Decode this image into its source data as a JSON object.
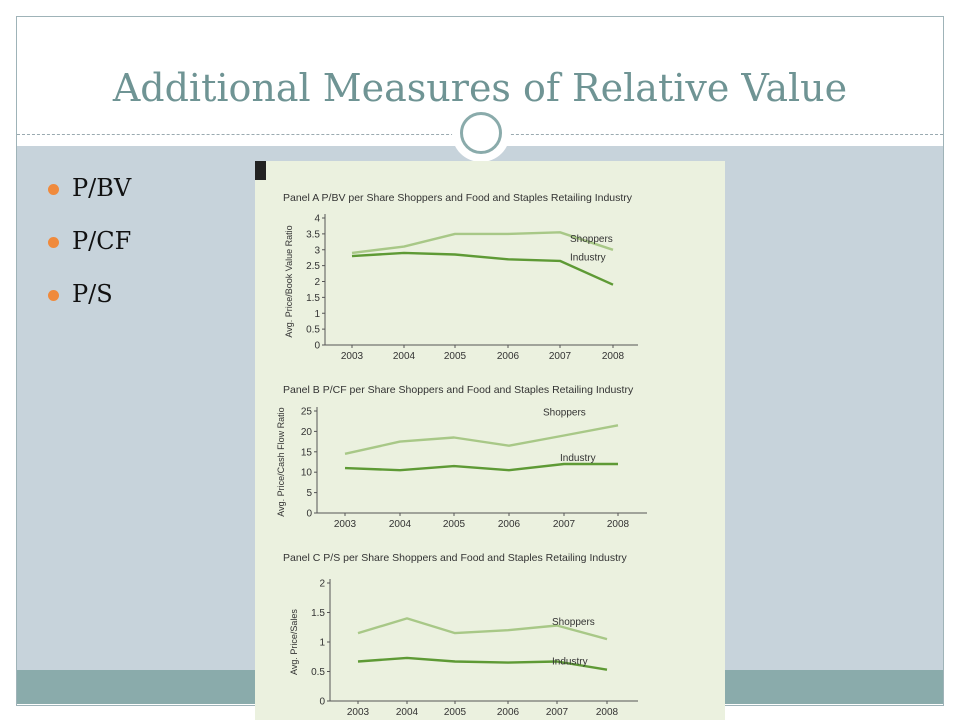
{
  "slide": {
    "title": "Additional Measures of Relative Value",
    "bullets": [
      "P/BV",
      "P/CF",
      "P/S"
    ]
  },
  "colors": {
    "title": "#6f9494",
    "accent_bar": "#8aabab",
    "content_bg": "#c7d3db",
    "bullet": "#f08a3c",
    "shoppers_line": "#a8c887",
    "industry_line": "#5e9a35",
    "figure_bg": "#ebf1df"
  },
  "chart_data": [
    {
      "type": "line",
      "title": "Panel A P/BV per Share Shoppers and Food and Staples Retailing Industry",
      "ylabel": "Avg. Price/Book Value Ratio",
      "x": [
        "2003",
        "2004",
        "2005",
        "2006",
        "2007",
        "2008"
      ],
      "yticks": [
        "0",
        "0.5",
        "1",
        "1.5",
        "2",
        "2.5",
        "3",
        "3.5",
        "4"
      ],
      "ylim": [
        0,
        4
      ],
      "series": [
        {
          "name": "Shoppers",
          "values": [
            2.9,
            3.1,
            3.5,
            3.5,
            3.55,
            3.0
          ]
        },
        {
          "name": "Industry",
          "values": [
            2.8,
            2.9,
            2.85,
            2.7,
            2.65,
            1.9
          ]
        }
      ]
    },
    {
      "type": "line",
      "title": "Panel B P/CF per Share Shoppers and Food and Staples Retailing Industry",
      "ylabel": "Avg. Price/Cash Flow Ratio",
      "x": [
        "2003",
        "2004",
        "2005",
        "2006",
        "2007",
        "2008"
      ],
      "yticks": [
        "0",
        "5",
        "10",
        "15",
        "20",
        "25"
      ],
      "ylim": [
        0,
        25
      ],
      "series": [
        {
          "name": "Shoppers",
          "values": [
            14.5,
            17.5,
            18.5,
            16.5,
            19,
            21.5
          ]
        },
        {
          "name": "Industry",
          "values": [
            11,
            10.5,
            11.5,
            10.5,
            12,
            12
          ]
        }
      ]
    },
    {
      "type": "line",
      "title": "Panel C P/S per Share Shoppers and Food and Staples Retailing Industry",
      "ylabel": "Avg. Price/Sales",
      "x": [
        "2003",
        "2004",
        "2005",
        "2006",
        "2007",
        "2008"
      ],
      "yticks": [
        "0",
        "0.5",
        "1",
        "1.5",
        "2"
      ],
      "ylim": [
        0,
        2
      ],
      "series": [
        {
          "name": "Shoppers",
          "values": [
            1.15,
            1.4,
            1.15,
            1.2,
            1.28,
            1.05
          ]
        },
        {
          "name": "Industry",
          "values": [
            0.67,
            0.73,
            0.67,
            0.65,
            0.67,
            0.53
          ]
        }
      ]
    }
  ]
}
